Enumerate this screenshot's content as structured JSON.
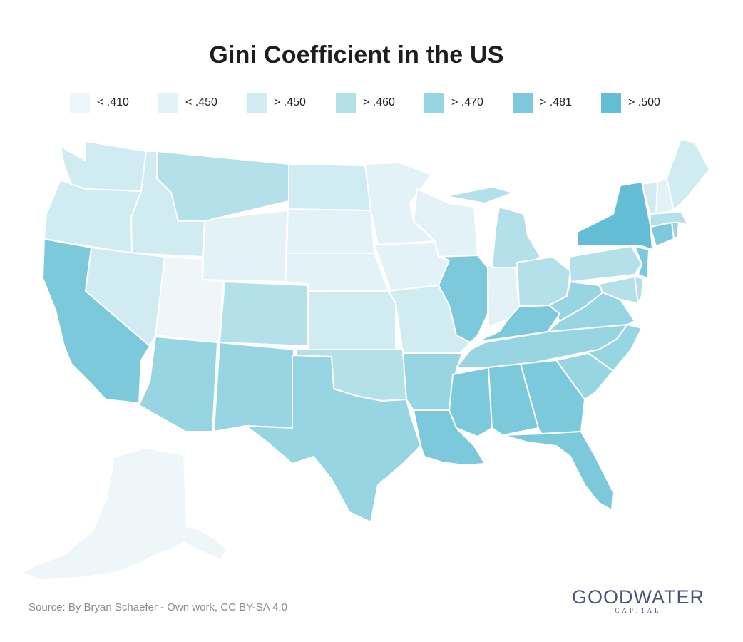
{
  "title": "Gini Coefficient in the US",
  "legend": [
    {
      "label": "< .410",
      "color": "#eef6f9"
    },
    {
      "label": "< .450",
      "color": "#e3f2f7"
    },
    {
      "label": "> .450",
      "color": "#d0ebf2"
    },
    {
      "label": "> .460",
      "color": "#b4e0ea"
    },
    {
      "label": "> .470",
      "color": "#97d5e2"
    },
    {
      "label": "> .481",
      "color": "#7cc9dc"
    },
    {
      "label": "> .500",
      "color": "#63bed5"
    }
  ],
  "states": [
    {
      "name": "Alaska",
      "bin": 0
    },
    {
      "name": "Utah",
      "bin": 0
    },
    {
      "name": "Wyoming",
      "bin": 1
    },
    {
      "name": "South Dakota",
      "bin": 1
    },
    {
      "name": "Nebraska",
      "bin": 1
    },
    {
      "name": "Iowa",
      "bin": 1
    },
    {
      "name": "Minnesota",
      "bin": 1
    },
    {
      "name": "Wisconsin",
      "bin": 1
    },
    {
      "name": "Indiana",
      "bin": 1
    },
    {
      "name": "New Hampshire",
      "bin": 1
    },
    {
      "name": "Vermont",
      "bin": 2
    },
    {
      "name": "Washington",
      "bin": 2
    },
    {
      "name": "Oregon",
      "bin": 2
    },
    {
      "name": "Idaho",
      "bin": 2
    },
    {
      "name": "Nevada",
      "bin": 2
    },
    {
      "name": "North Dakota",
      "bin": 2
    },
    {
      "name": "Kansas",
      "bin": 2
    },
    {
      "name": "Missouri",
      "bin": 2
    },
    {
      "name": "Maine",
      "bin": 2
    },
    {
      "name": "Montana",
      "bin": 3
    },
    {
      "name": "Colorado",
      "bin": 3
    },
    {
      "name": "Oklahoma",
      "bin": 3
    },
    {
      "name": "Michigan",
      "bin": 3
    },
    {
      "name": "Ohio",
      "bin": 3
    },
    {
      "name": "Pennsylvania",
      "bin": 3
    },
    {
      "name": "Maryland",
      "bin": 3
    },
    {
      "name": "Delaware",
      "bin": 3
    },
    {
      "name": "Massachusetts",
      "bin": 3
    },
    {
      "name": "Arizona",
      "bin": 4
    },
    {
      "name": "New Mexico",
      "bin": 4
    },
    {
      "name": "Texas",
      "bin": 4
    },
    {
      "name": "Arkansas",
      "bin": 4
    },
    {
      "name": "Tennessee",
      "bin": 4
    },
    {
      "name": "Virginia",
      "bin": 4
    },
    {
      "name": "North Carolina",
      "bin": 4
    },
    {
      "name": "South Carolina",
      "bin": 4
    },
    {
      "name": "West Virginia",
      "bin": 4
    },
    {
      "name": "Rhode Island",
      "bin": 4
    },
    {
      "name": "California",
      "bin": 5
    },
    {
      "name": "Illinois",
      "bin": 5
    },
    {
      "name": "Kentucky",
      "bin": 5
    },
    {
      "name": "Mississippi",
      "bin": 5
    },
    {
      "name": "Alabama",
      "bin": 5
    },
    {
      "name": "Georgia",
      "bin": 5
    },
    {
      "name": "Florida",
      "bin": 5
    },
    {
      "name": "Louisiana",
      "bin": 5
    },
    {
      "name": "New Jersey",
      "bin": 5
    },
    {
      "name": "Connecticut",
      "bin": 5
    },
    {
      "name": "New York",
      "bin": 6
    }
  ],
  "source": "Source: By Bryan Schaefer - Own work, CC BY-SA 4.0",
  "brand": {
    "name": "GOODWATER",
    "sub": "CAPITAL"
  }
}
